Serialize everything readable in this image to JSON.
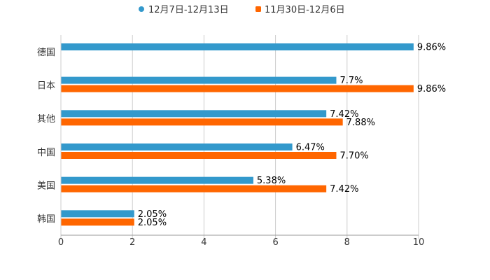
{
  "chart_data": {
    "type": "bar",
    "orientation": "horizontal",
    "categories": [
      "德国",
      "日本",
      "其他",
      "中国",
      "美国",
      "韩国"
    ],
    "series": [
      {
        "name": "12月7日-12月13日",
        "color": "#3399cc",
        "values": [
          9.86,
          7.7,
          7.42,
          6.47,
          5.38,
          2.05
        ],
        "labels": [
          "9.86%",
          "7.7%",
          "7.42%",
          "6.47%",
          "5.38%",
          "2.05%"
        ]
      },
      {
        "name": "11月30日-12月6日",
        "color": "#ff6600",
        "values": [
          null,
          9.86,
          7.88,
          7.7,
          7.42,
          2.05
        ],
        "labels": [
          "",
          "9.86%",
          "7.88%",
          "7.70%",
          "7.42%",
          "2.05%"
        ]
      }
    ],
    "xlim": [
      0,
      10
    ],
    "xticks": [
      "0",
      "2",
      "4",
      "6",
      "8",
      "10"
    ],
    "grid": true,
    "legend_position": "top"
  }
}
